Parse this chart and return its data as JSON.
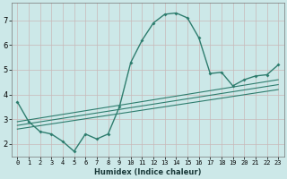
{
  "xlabel": "Humidex (Indice chaleur)",
  "ylabel": "",
  "bg_color": "#cce8e8",
  "grid_color": "#c8b8b8",
  "line_color": "#2e7d6e",
  "xlim": [
    -0.5,
    23.5
  ],
  "ylim": [
    1.5,
    7.7
  ],
  "yticks": [
    2,
    3,
    4,
    5,
    6,
    7
  ],
  "xticks": [
    0,
    1,
    2,
    3,
    4,
    5,
    6,
    7,
    8,
    9,
    10,
    11,
    12,
    13,
    14,
    15,
    16,
    17,
    18,
    19,
    20,
    21,
    22,
    23
  ],
  "main_x": [
    0,
    1,
    2,
    3,
    4,
    5,
    6,
    7,
    8,
    9,
    10,
    11,
    12,
    13,
    14,
    15,
    16,
    17,
    18,
    19,
    20,
    21,
    22,
    23
  ],
  "main_y": [
    3.7,
    2.9,
    2.5,
    2.4,
    2.1,
    1.7,
    2.4,
    2.2,
    2.4,
    3.5,
    5.3,
    6.2,
    6.9,
    7.25,
    7.3,
    7.1,
    6.3,
    4.85,
    4.9,
    4.35,
    4.6,
    4.75,
    4.8,
    5.2
  ],
  "trend_lines": [
    {
      "x": [
        0,
        23
      ],
      "y": [
        2.6,
        4.2
      ]
    },
    {
      "x": [
        0,
        23
      ],
      "y": [
        2.75,
        4.4
      ]
    },
    {
      "x": [
        0,
        23
      ],
      "y": [
        2.9,
        4.6
      ]
    }
  ]
}
